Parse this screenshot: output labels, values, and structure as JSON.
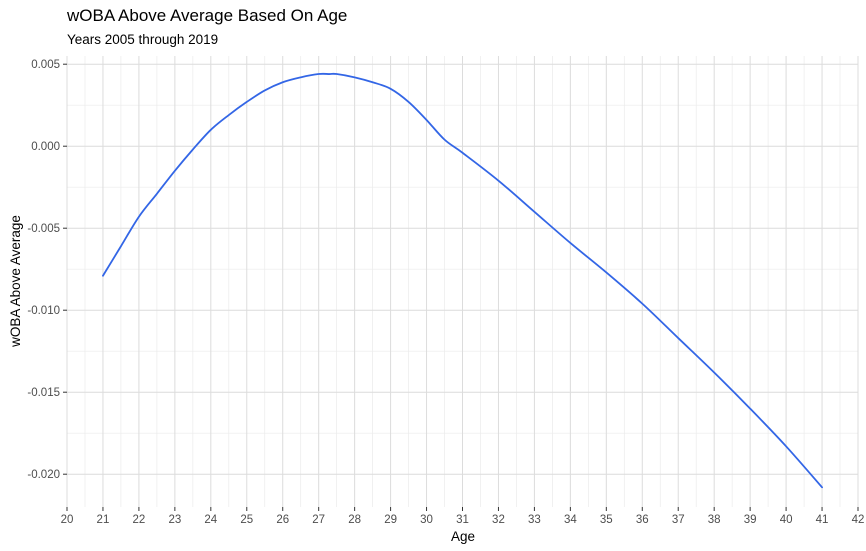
{
  "chart_data": {
    "type": "line",
    "title": "wOBA Above Average Based On Age",
    "subtitle": "Years 2005 through 2019",
    "xlabel": "Age",
    "ylabel": "wOBA Above Average",
    "xlim": [
      20,
      42
    ],
    "ylim": [
      -0.022,
      0.0055
    ],
    "x_ticks": [
      20,
      21,
      22,
      23,
      24,
      25,
      26,
      27,
      28,
      29,
      30,
      31,
      32,
      33,
      34,
      35,
      36,
      37,
      38,
      39,
      40,
      41,
      42
    ],
    "y_ticks": [
      0.005,
      0.0,
      -0.005,
      -0.01,
      -0.015,
      -0.02
    ],
    "y_tick_labels": [
      "0.005",
      "0.000",
      "-0.005",
      "-0.010",
      "-0.015",
      "-0.020"
    ],
    "grid": true,
    "line_color": "#3366e6",
    "series": [
      {
        "x": [
          21,
          21.5,
          22,
          22.5,
          23,
          23.5,
          24,
          24.5,
          25,
          25.5,
          26,
          26.5,
          27,
          27.3,
          27.5,
          28,
          28.5,
          29,
          29.5,
          30,
          30.5,
          31,
          32,
          33,
          34,
          35,
          36,
          37,
          38,
          39,
          40,
          41
        ],
        "y": [
          -0.0079,
          -0.0061,
          -0.0043,
          -0.0029,
          -0.0015,
          -0.0002,
          0.001,
          0.0019,
          0.0027,
          0.0034,
          0.0039,
          0.0042,
          0.0044,
          0.0044,
          0.0044,
          0.0042,
          0.0039,
          0.0035,
          0.0027,
          0.0016,
          0.0004,
          -0.0004,
          -0.0021,
          -0.004,
          -0.0059,
          -0.0077,
          -0.0096,
          -0.0117,
          -0.0138,
          -0.016,
          -0.0183,
          -0.0208
        ]
      }
    ]
  }
}
